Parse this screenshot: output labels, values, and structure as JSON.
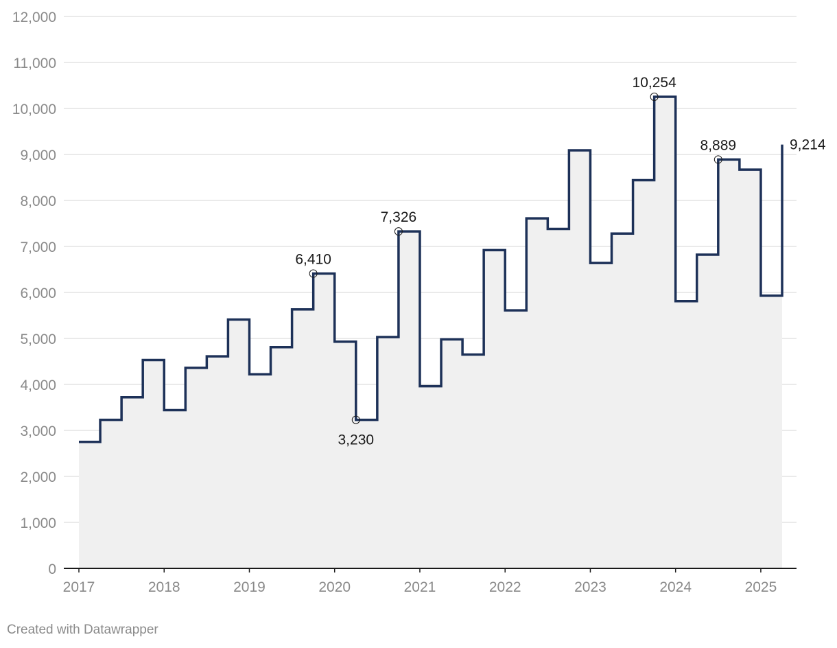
{
  "chart_data": {
    "type": "area",
    "step": true,
    "title": "",
    "xlabel": "",
    "ylabel": "",
    "ylim": [
      0,
      12000
    ],
    "y_ticks": [
      0,
      1000,
      2000,
      3000,
      4000,
      5000,
      6000,
      7000,
      8000,
      9000,
      10000,
      11000,
      12000
    ],
    "y_tick_labels": [
      "0",
      "1,000",
      "2,000",
      "3,000",
      "4,000",
      "5,000",
      "6,000",
      "7,000",
      "8,000",
      "9,000",
      "10,000",
      "11,000",
      "12,000"
    ],
    "x_ticks": [
      2017,
      2018,
      2019,
      2020,
      2021,
      2022,
      2023,
      2024,
      2025
    ],
    "x_tick_labels": [
      "2017",
      "2018",
      "2019",
      "2020",
      "2021",
      "2022",
      "2023",
      "2024",
      "2025"
    ],
    "xlim": [
      2017,
      2025.25
    ],
    "grid": true,
    "line_color": "#1d3158",
    "fill_color": "#f0f0f0",
    "series": [
      {
        "x": [
          2017.0,
          2017.25,
          2017.5,
          2017.75,
          2018.0,
          2018.25,
          2018.5,
          2018.75,
          2019.0,
          2019.25,
          2019.5,
          2019.75,
          2020.0,
          2020.25,
          2020.5,
          2020.75,
          2021.0,
          2021.25,
          2021.5,
          2021.75,
          2022.0,
          2022.25,
          2022.5,
          2022.75,
          2023.0,
          2023.25,
          2023.5,
          2023.75,
          2024.0,
          2024.25,
          2024.5,
          2024.75,
          2025.0,
          2025.25
        ],
        "values": [
          2750,
          3230,
          3720,
          4530,
          3440,
          4360,
          4610,
          5410,
          4220,
          4810,
          5630,
          6410,
          4930,
          3230,
          5030,
          7326,
          3960,
          4980,
          4650,
          6920,
          5610,
          7610,
          7380,
          9090,
          6640,
          7280,
          8440,
          10254,
          5810,
          6820,
          8889,
          8670,
          5930,
          9214
        ]
      }
    ],
    "annotations": [
      {
        "x": 2019.75,
        "y": 6410,
        "label": "6,410",
        "position": "above"
      },
      {
        "x": 2020.25,
        "y": 3230,
        "label": "3,230",
        "position": "below"
      },
      {
        "x": 2020.75,
        "y": 7326,
        "label": "7,326",
        "position": "above"
      },
      {
        "x": 2023.75,
        "y": 10254,
        "label": "10,254",
        "position": "above"
      },
      {
        "x": 2024.5,
        "y": 8889,
        "label": "8,889",
        "position": "above"
      },
      {
        "x": 2025.25,
        "y": 9214,
        "label": "9,214",
        "position": "right"
      }
    ]
  },
  "footer": {
    "credit": "Created with Datawrapper"
  }
}
